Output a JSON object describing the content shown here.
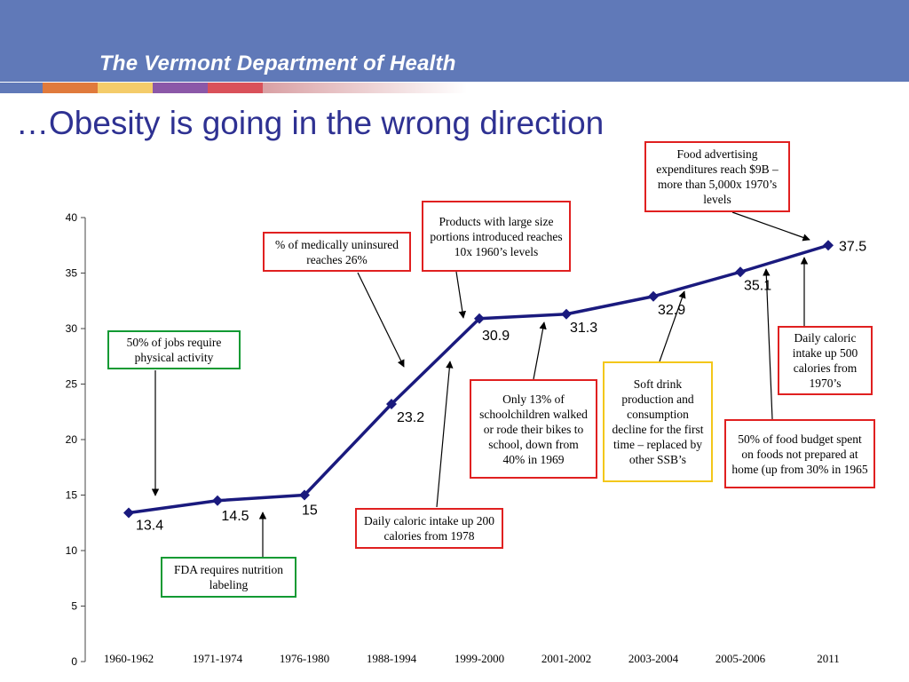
{
  "header": {
    "title": "The Vermont Department of Health"
  },
  "slide": {
    "title": "…Obesity is going in the wrong direction"
  },
  "colors": {
    "header_bg": "#6079b8",
    "title_text": "#2e3192",
    "series_line": "#1a1a7e",
    "box_red": "#e02020",
    "box_green": "#119a33",
    "box_yellow": "#f3c71a",
    "stripe": [
      "#6079b8",
      "#e07a3c",
      "#f4cc6a",
      "#8b58a8",
      "#d9515a",
      "#d9a0a4"
    ]
  },
  "chart_data": {
    "type": "line",
    "title": "",
    "xlabel": "",
    "ylabel": "",
    "ylim": [
      0,
      40
    ],
    "yticks": [
      0,
      5,
      10,
      15,
      20,
      25,
      30,
      35,
      40
    ],
    "grid": false,
    "categories": [
      "1960-1962",
      "1971-1974",
      "1976-1980",
      "1988-1994",
      "1999-2000",
      "2001-2002",
      "2003-2004",
      "2005-2006",
      "2011"
    ],
    "series": [
      {
        "name": "Obesity",
        "values": [
          13.4,
          14.5,
          15,
          23.2,
          30.9,
          31.3,
          32.9,
          35.1,
          37.5
        ]
      }
    ],
    "data_labels": [
      "13.4",
      "14.5",
      "15",
      "23.2",
      "30.9",
      "31.3",
      "32.9",
      "35.1",
      "37.5"
    ],
    "annotations": [
      {
        "id": "jobs",
        "text": "50% of jobs require physical activity"
      },
      {
        "id": "fda",
        "text": "FDA requires nutrition labeling"
      },
      {
        "id": "uninsured",
        "text": "% of medically uninsured reaches 26%"
      },
      {
        "id": "calories200",
        "text": "Daily caloric intake up 200 calories from 1978"
      },
      {
        "id": "portions",
        "text": "Products with large size portions introduced reaches 10x 1960’s levels"
      },
      {
        "id": "schoolchildren",
        "text": "Only 13% of schoolchildren walked or rode their bikes to school, down from 40% in 1969"
      },
      {
        "id": "softdrink",
        "text": "Soft drink production and consumption decline for the first time – replaced by other SSB’s"
      },
      {
        "id": "advertising",
        "text": "Food advertising expenditures reach $9B – more than 5,000x 1970’s levels"
      },
      {
        "id": "foodbudget",
        "text": "50% of food budget spent on foods not prepared at home (up from 30% in 1965"
      },
      {
        "id": "calories500",
        "text": "Daily caloric intake up 500 calories from 1970’s"
      }
    ]
  }
}
